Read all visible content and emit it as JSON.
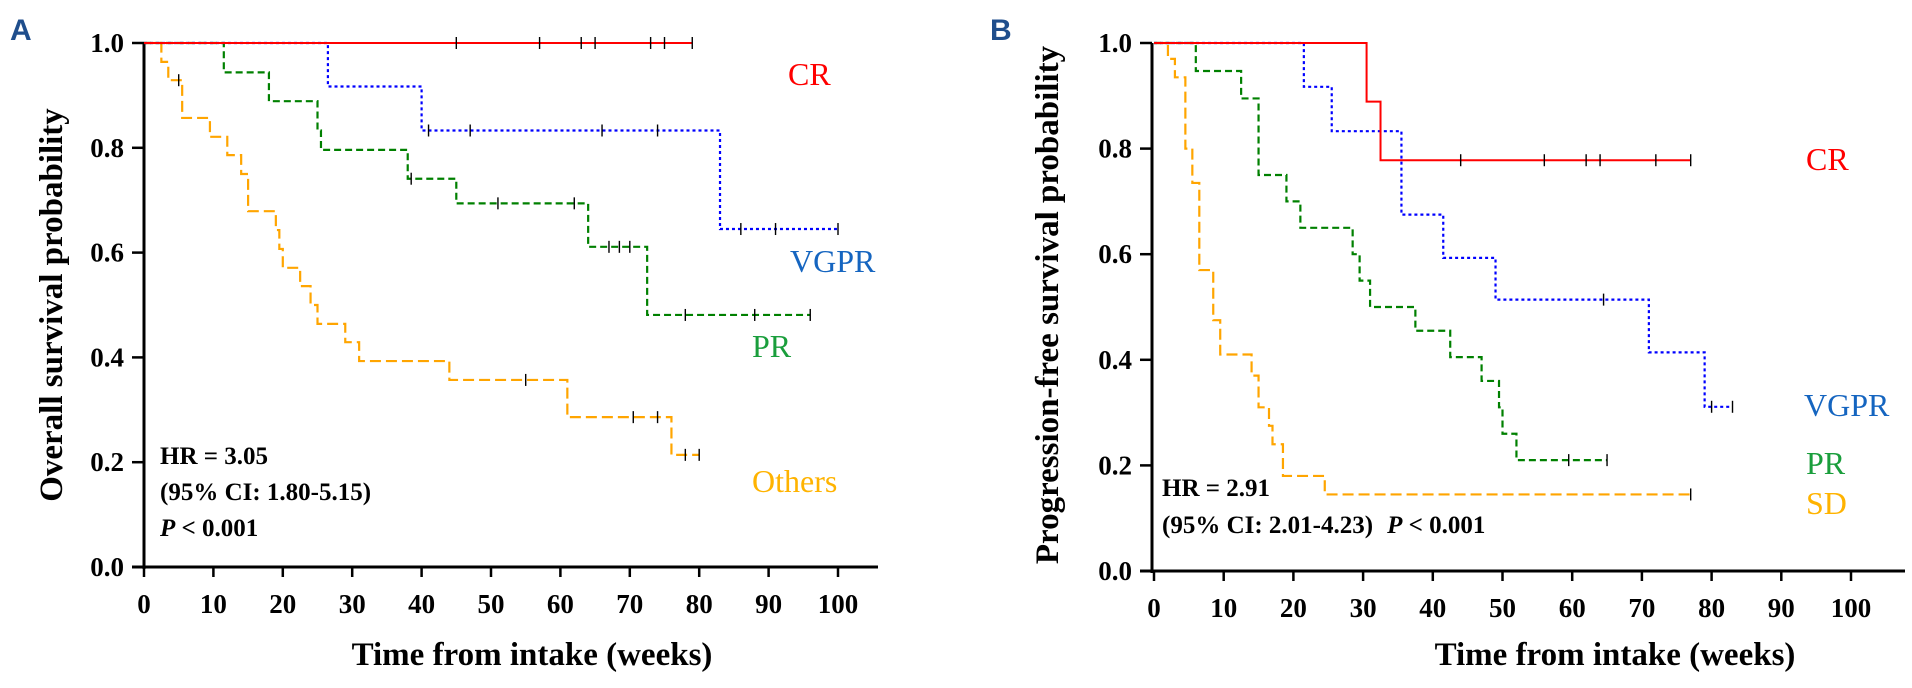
{
  "chart_data": [
    {
      "type": "line",
      "subtype": "kaplan-meier",
      "panel": "A",
      "title": "",
      "xlabel": "Time from intake (weeks)",
      "ylabel": "Overall survival probability",
      "xlim": [
        0,
        100
      ],
      "ylim": [
        0,
        1.0
      ],
      "xticks": [
        "0",
        "10",
        "20",
        "30",
        "40",
        "50",
        "60",
        "70",
        "80",
        "90",
        "100"
      ],
      "yticks": [
        "0.0",
        "0.2",
        "0.4",
        "0.6",
        "0.8",
        "1.0"
      ],
      "grid": false,
      "annotations": {
        "hr": "HR = 3.05",
        "ci": "(95% CI: 1.80-5.15)",
        "p_italic": "P",
        "p_rest": " < 0.001"
      },
      "series": [
        {
          "name": "CR",
          "color": "#ff0000",
          "style": "solid",
          "steps": [
            [
              0,
              1.0
            ],
            [
              79,
              1.0
            ]
          ],
          "censored": [
            [
              45,
              1.0
            ],
            [
              57,
              1.0
            ],
            [
              63,
              1.0
            ],
            [
              65,
              1.0
            ],
            [
              73,
              1.0
            ],
            [
              75,
              1.0
            ],
            [
              79,
              1.0
            ]
          ]
        },
        {
          "name": "VGPR",
          "color": "#0000ff",
          "style": "dotted",
          "steps": [
            [
              0,
              1.0
            ],
            [
              26.5,
              0.917
            ],
            [
              40,
              0.833
            ],
            [
              83,
              0.645
            ],
            [
              100,
              0.645
            ]
          ],
          "censored": [
            [
              41,
              0.833
            ],
            [
              47,
              0.833
            ],
            [
              66,
              0.833
            ],
            [
              74,
              0.833
            ],
            [
              86,
              0.645
            ],
            [
              91,
              0.645
            ],
            [
              100,
              0.645
            ]
          ]
        },
        {
          "name": "PR",
          "color": "#008000",
          "style": "dashed",
          "steps": [
            [
              0,
              1.0
            ],
            [
              11.5,
              0.944
            ],
            [
              18,
              0.889
            ],
            [
              25,
              0.833
            ],
            [
              25.5,
              0.796
            ],
            [
              38,
              0.741
            ],
            [
              45,
              0.694
            ],
            [
              64,
              0.611
            ],
            [
              72.5,
              0.481
            ],
            [
              96,
              0.481
            ]
          ],
          "censored": [
            [
              38.5,
              0.741
            ],
            [
              51,
              0.694
            ],
            [
              62,
              0.694
            ],
            [
              67,
              0.611
            ],
            [
              68.5,
              0.611
            ],
            [
              70,
              0.611
            ],
            [
              78,
              0.481
            ],
            [
              88,
              0.481
            ],
            [
              96,
              0.481
            ]
          ]
        },
        {
          "name": "Others",
          "color": "#ffa500",
          "style": "longdash",
          "steps": [
            [
              0,
              1.0
            ],
            [
              2.5,
              0.964
            ],
            [
              3.5,
              0.929
            ],
            [
              5.5,
              0.857
            ],
            [
              9.5,
              0.821
            ],
            [
              12,
              0.786
            ],
            [
              14,
              0.75
            ],
            [
              15,
              0.679
            ],
            [
              19,
              0.643
            ],
            [
              19.5,
              0.607
            ],
            [
              20,
              0.571
            ],
            [
              22.5,
              0.536
            ],
            [
              24,
              0.5
            ],
            [
              25,
              0.464
            ],
            [
              29,
              0.429
            ],
            [
              31,
              0.393
            ],
            [
              44,
              0.357
            ],
            [
              61,
              0.286
            ],
            [
              76,
              0.214
            ],
            [
              80,
              0.214
            ]
          ],
          "censored": [
            [
              5,
              0.929
            ],
            [
              55,
              0.357
            ],
            [
              70.5,
              0.286
            ],
            [
              74,
              0.286
            ],
            [
              78,
              0.214
            ],
            [
              80,
              0.214
            ]
          ]
        }
      ],
      "series_labels": [
        "CR",
        "VGPR",
        "PR",
        "Others"
      ],
      "label_colors": [
        "#ff0000",
        "#1565c0",
        "#1a9e3c",
        "#ffb300"
      ]
    },
    {
      "type": "line",
      "subtype": "kaplan-meier",
      "panel": "B",
      "title": "",
      "xlabel": "Time from intake (weeks)",
      "ylabel": "Progression-free survival probability",
      "xlim": [
        0,
        100
      ],
      "ylim": [
        0,
        1.0
      ],
      "xticks": [
        "0",
        "10",
        "20",
        "30",
        "40",
        "50",
        "60",
        "70",
        "80",
        "90",
        "100"
      ],
      "yticks": [
        "0.0",
        "0.2",
        "0.4",
        "0.6",
        "0.8",
        "1.0"
      ],
      "grid": false,
      "annotations": {
        "hr": "HR = 2.91",
        "ci": "(95% CI: 2.01-4.23)",
        "p_italic": "P",
        "p_rest": " < 0.001"
      },
      "series": [
        {
          "name": "CR",
          "color": "#ff0000",
          "style": "solid",
          "steps": [
            [
              0,
              1.0
            ],
            [
              30.5,
              0.889
            ],
            [
              32.5,
              0.778
            ],
            [
              77,
              0.778
            ]
          ],
          "censored": [
            [
              44,
              0.778
            ],
            [
              56,
              0.778
            ],
            [
              62,
              0.778
            ],
            [
              64,
              0.778
            ],
            [
              72,
              0.778
            ],
            [
              77,
              0.778
            ]
          ]
        },
        {
          "name": "VGPR",
          "color": "#0000ff",
          "style": "dotted",
          "steps": [
            [
              0,
              1.0
            ],
            [
              21.5,
              0.917
            ],
            [
              25.5,
              0.833
            ],
            [
              35.5,
              0.675
            ],
            [
              41.5,
              0.593
            ],
            [
              49,
              0.514
            ],
            [
              71,
              0.414
            ],
            [
              79,
              0.311
            ],
            [
              83,
              0.311
            ]
          ],
          "censored": [
            [
              64.5,
              0.514
            ],
            [
              80,
              0.311
            ],
            [
              83,
              0.311
            ]
          ]
        },
        {
          "name": "PR",
          "color": "#008000",
          "style": "dashed",
          "steps": [
            [
              0,
              1.0
            ],
            [
              6,
              0.947
            ],
            [
              12.5,
              0.895
            ],
            [
              15,
              0.75
            ],
            [
              19,
              0.7
            ],
            [
              21,
              0.65
            ],
            [
              28.5,
              0.6
            ],
            [
              29.5,
              0.55
            ],
            [
              31,
              0.5
            ],
            [
              37.5,
              0.455
            ],
            [
              42.5,
              0.405
            ],
            [
              47,
              0.36
            ],
            [
              49.5,
              0.31
            ],
            [
              50,
              0.26
            ],
            [
              52,
              0.21
            ],
            [
              65,
              0.21
            ]
          ],
          "censored": [
            [
              59.5,
              0.21
            ],
            [
              65,
              0.21
            ]
          ]
        },
        {
          "name": "SD",
          "color": "#ffa500",
          "style": "longdash",
          "steps": [
            [
              0,
              1.0
            ],
            [
              2,
              0.97
            ],
            [
              3,
              0.935
            ],
            [
              4.5,
              0.8
            ],
            [
              5.5,
              0.735
            ],
            [
              6.5,
              0.57
            ],
            [
              8.5,
              0.475
            ],
            [
              9.5,
              0.41
            ],
            [
              14,
              0.37
            ],
            [
              15,
              0.31
            ],
            [
              16.5,
              0.275
            ],
            [
              17,
              0.24
            ],
            [
              18.5,
              0.18
            ],
            [
              24.5,
              0.145
            ],
            [
              77,
              0.145
            ]
          ],
          "censored": [
            [
              77,
              0.145
            ]
          ]
        }
      ],
      "series_labels": [
        "CR",
        "VGPR",
        "PR",
        "SD"
      ],
      "label_colors": [
        "#ff0000",
        "#1565c0",
        "#1a9e3c",
        "#ffb300"
      ]
    }
  ],
  "panels": {
    "a_letter": "A",
    "b_letter": "B"
  }
}
